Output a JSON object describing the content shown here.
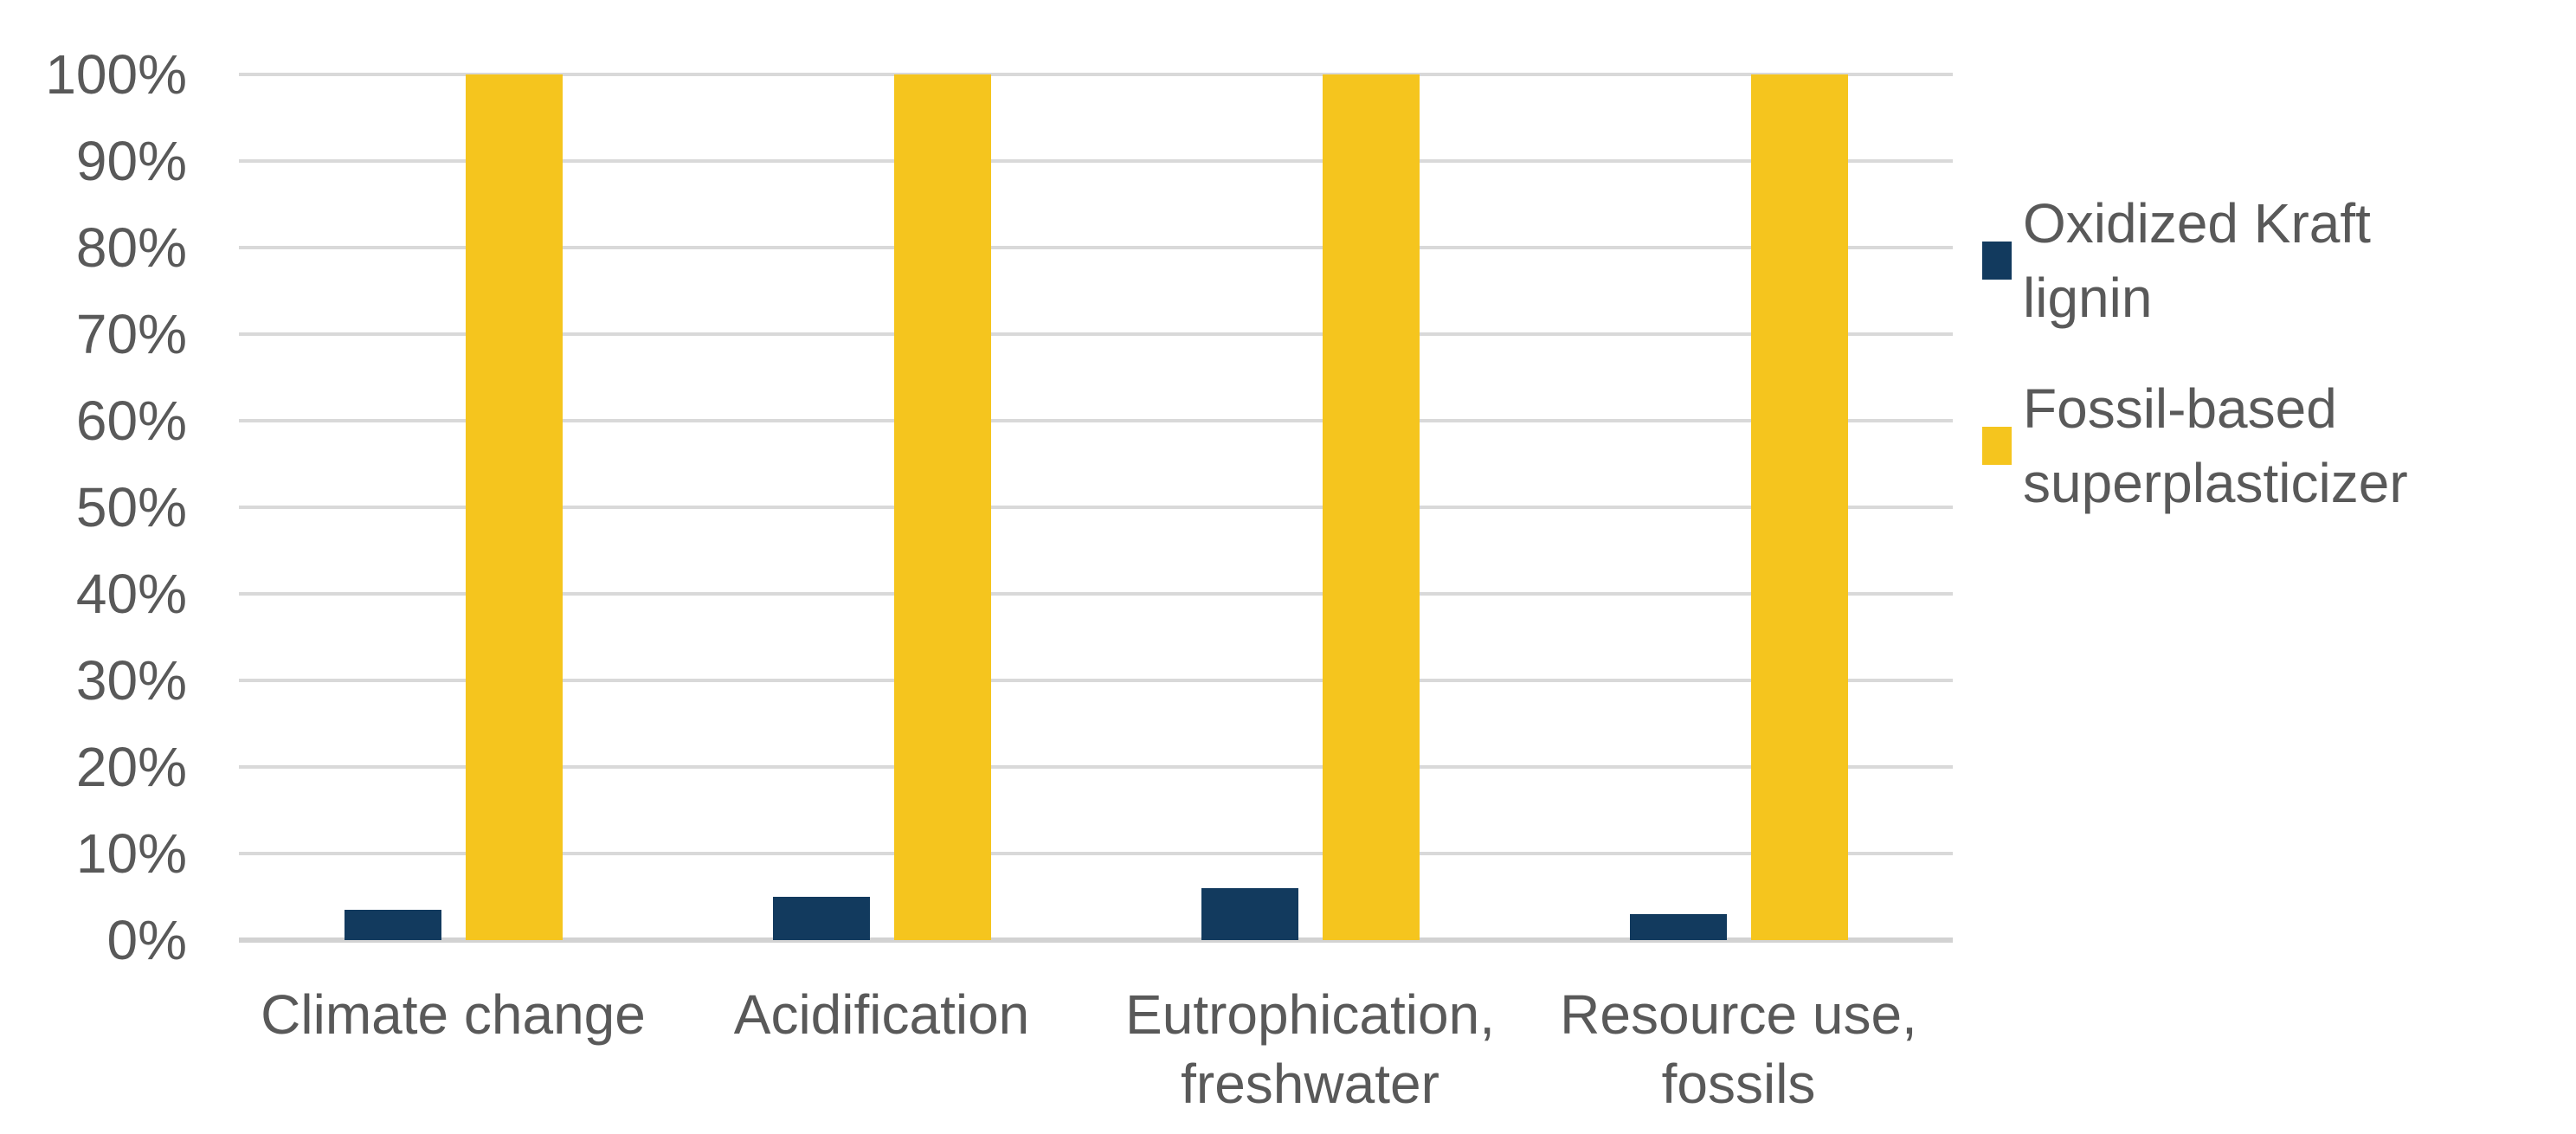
{
  "chart_data": {
    "type": "bar",
    "title": "",
    "xlabel": "",
    "ylabel": "",
    "categories": [
      "Climate change",
      "Acidification",
      "Eutrophication, freshwater",
      "Resource use, fossils"
    ],
    "series": [
      {
        "name": "Oxidized Kraft lignin",
        "color": "#123A5E",
        "values": [
          3.5,
          5,
          6,
          3
        ]
      },
      {
        "name": "Fossil-based superplasticizer",
        "color": "#F5C51E",
        "values": [
          100,
          100,
          100,
          100
        ]
      }
    ],
    "ylim": [
      0,
      100
    ],
    "y_tick_step": 10,
    "y_tick_labels": [
      "0%",
      "10%",
      "20%",
      "30%",
      "40%",
      "50%",
      "60%",
      "70%",
      "80%",
      "90%",
      "100%"
    ],
    "grid": true,
    "legend_position": "right"
  },
  "style": {
    "background": "#FFFFFF",
    "axis_text_color": "#595959",
    "gridline_color": "#D9D9D9",
    "baseline_color": "#D2D2D2"
  }
}
